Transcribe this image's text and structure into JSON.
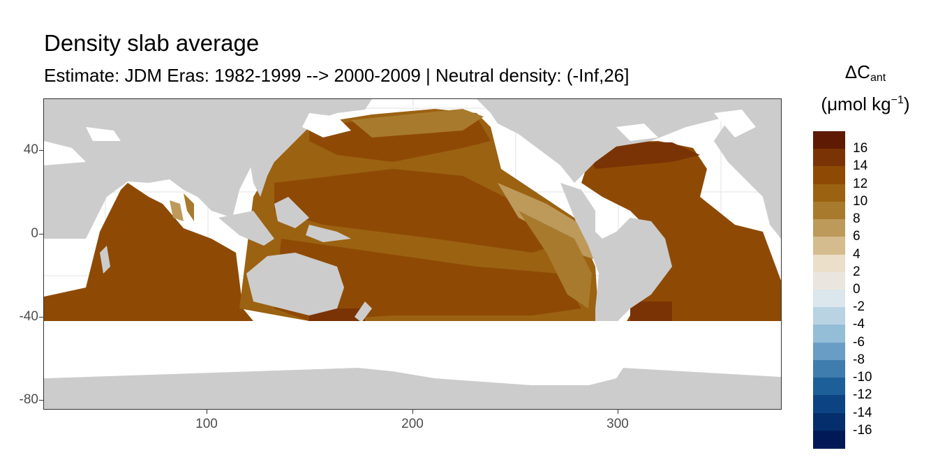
{
  "header": {
    "title": "Density slab average",
    "subtitle": "Estimate: JDM Eras: 1982-1999 --> 2000-2009 | Neutral density: (-Inf,26]"
  },
  "legend": {
    "symbol": "ΔC",
    "symbol_sub": "ant",
    "unit_open": "(μmol kg",
    "unit_sup": "−1",
    "unit_close": ")",
    "labels": [
      "16",
      "14",
      "12",
      "10",
      "8",
      "6",
      "4",
      "2",
      "0",
      "-2",
      "-4",
      "-6",
      "-8",
      "-10",
      "-12",
      "-14",
      "-16"
    ],
    "colors": [
      "#5e1a02",
      "#7a3304",
      "#8e4a05",
      "#9b6212",
      "#a87a2d",
      "#bd9a5a",
      "#d4bc8e",
      "#ebdfc9",
      "#eae6df",
      "#dbe6ed",
      "#b9d3e3",
      "#94bdd8",
      "#6a9dc5",
      "#3f7dae",
      "#1d5f98",
      "#0c4483",
      "#052f6c",
      "#011a57"
    ]
  },
  "axes": {
    "y_ticks": [
      "40",
      "0",
      "-40",
      "-80"
    ],
    "x_ticks": [
      "100",
      "200",
      "300"
    ],
    "xlim": [
      20,
      380
    ],
    "ylim": [
      -85,
      64
    ]
  },
  "colors": {
    "land": "#cccccc",
    "ocean_masked": "#ffffff",
    "grid": "#ebebeb"
  }
}
